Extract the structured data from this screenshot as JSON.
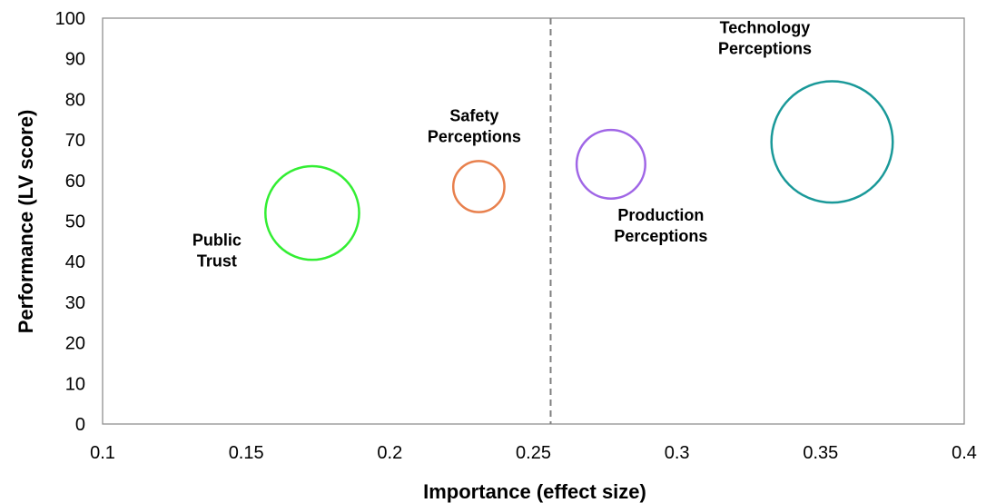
{
  "chart_data": {
    "type": "scatter",
    "title": "",
    "xlabel": "Importance (effect size)",
    "ylabel": "Performance (LV score)",
    "xlim": [
      0.1,
      0.4
    ],
    "ylim": [
      0,
      100
    ],
    "xticks": [
      "0.1",
      "0.15",
      "0.2",
      "0.25",
      "0.3",
      "0.35",
      "0.4"
    ],
    "yticks": [
      "0",
      "10",
      "20",
      "30",
      "40",
      "50",
      "60",
      "70",
      "80",
      "90",
      "100"
    ],
    "xtick_values": [
      0.1,
      0.15,
      0.2,
      0.25,
      0.3,
      0.35,
      0.4
    ],
    "ytick_values": [
      0,
      10,
      20,
      30,
      40,
      50,
      60,
      70,
      80,
      90,
      100
    ],
    "grid": false,
    "reference_line": {
      "x": 0.256,
      "style": "dashed",
      "color": "#808080"
    },
    "points": [
      {
        "name_lines": [
          "Public",
          "Trust"
        ],
        "x": 0.173,
        "y": 52,
        "bubble_size": 1.51,
        "color": "#33ee33",
        "label_position": "left-below"
      },
      {
        "name_lines": [
          "Safety",
          "Perceptions"
        ],
        "x": 0.231,
        "y": 58.5,
        "bubble_size": 0.45,
        "color": "#e8804d",
        "label_position": "above"
      },
      {
        "name_lines": [
          "Production",
          "Perceptions"
        ],
        "x": 0.277,
        "y": 64,
        "bubble_size": 0.81,
        "color": "#a066e6",
        "label_position": "right-below"
      },
      {
        "name_lines": [
          "Technology",
          "Perceptions"
        ],
        "x": 0.354,
        "y": 69.5,
        "bubble_size": 2.53,
        "color": "#1a9999",
        "label_position": "above-left"
      }
    ]
  }
}
